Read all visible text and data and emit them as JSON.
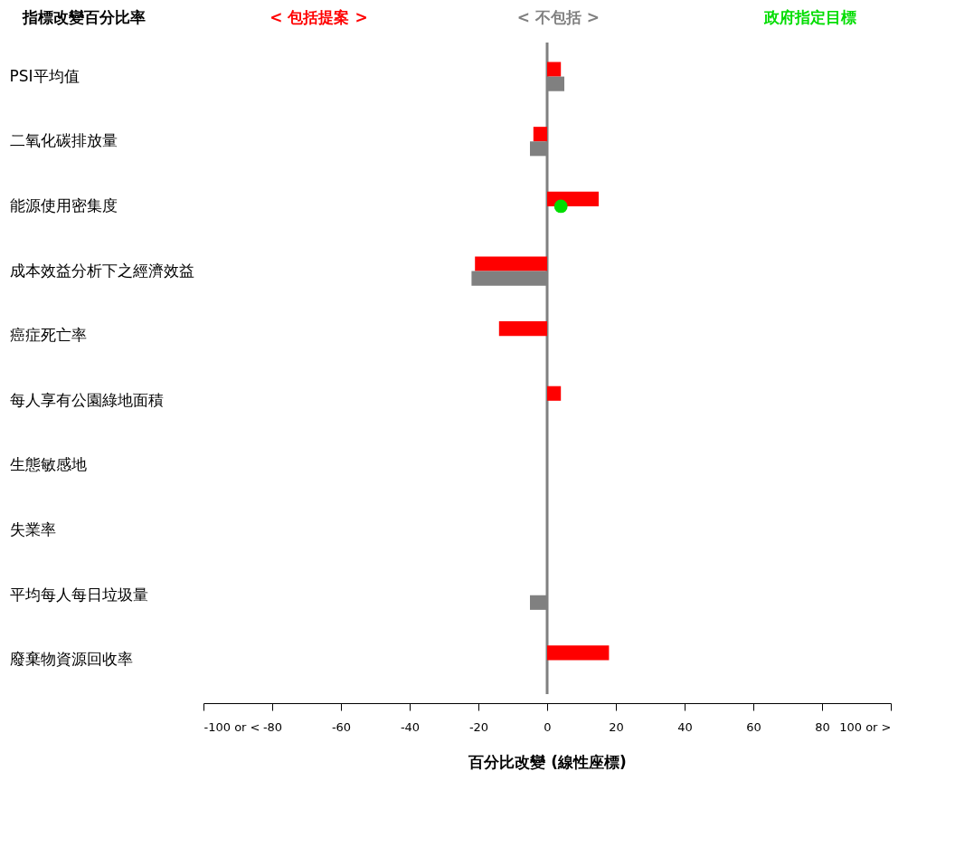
{
  "chart_data": {
    "type": "bar",
    "orientation": "horizontal",
    "title": "指標改變百分比率",
    "xlabel": "百分比改變 (線性座標)",
    "categories": [
      "PSI平均值",
      "二氧化碳排放量",
      "能源使用密集度",
      "成本效益分析下之經濟效益",
      "癌症死亡率",
      "每人享有公園綠地面積",
      "生態敏感地",
      "失業率",
      "平均每人每日垃圾量",
      "廢棄物資源回收率"
    ],
    "series": [
      {
        "name": "< 包括提案 >",
        "color": "#ff0000",
        "values": [
          4,
          -4,
          15,
          -21,
          -14,
          4,
          0,
          0,
          0,
          18
        ]
      },
      {
        "name": "< 不包括 >",
        "color": "#808080",
        "values": [
          5,
          -5,
          0,
          -22,
          0,
          0,
          0,
          0,
          -5,
          0
        ]
      },
      {
        "name": "政府指定目標",
        "type": "scatter",
        "color": "#00dd00",
        "values": [
          null,
          null,
          4,
          null,
          null,
          null,
          null,
          null,
          null,
          null
        ]
      }
    ],
    "xlim": [
      -100,
      100
    ],
    "xticks": [
      {
        "value": -100,
        "label": "-100 or <"
      },
      -80,
      -60,
      -40,
      -20,
      0,
      20,
      40,
      60,
      80,
      {
        "value": 100,
        "label": "100 or >"
      }
    ],
    "ref_lines": [
      {
        "axis": "x",
        "value": 0,
        "color": "#808080"
      }
    ],
    "legend": "top",
    "grid": false,
    "marker": "circle"
  }
}
